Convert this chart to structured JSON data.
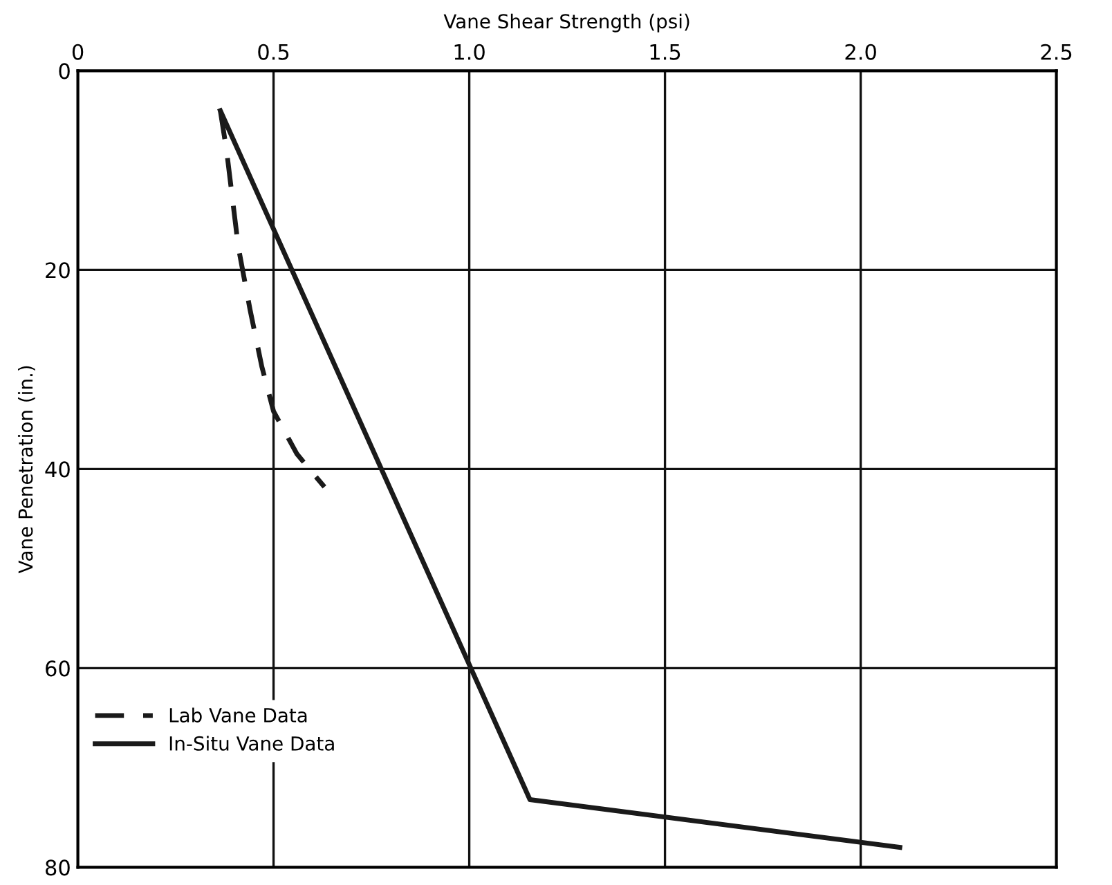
{
  "chart_data": {
    "type": "line",
    "xlabel": "Vane Shear Strength (psi)",
    "ylabel": "Vane Penetration (in.)",
    "xlim": [
      0,
      2.5
    ],
    "xticks": [
      0,
      0.5,
      {
        "value": 1,
        "label": "1.0"
      },
      1.5,
      {
        "value": 2,
        "label": "2.0"
      },
      2.5
    ],
    "ylim": [
      80,
      0
    ],
    "yticks": [
      0,
      20,
      40,
      60,
      80
    ],
    "grid": true,
    "legend": "bottom left",
    "series": [
      {
        "name": "Lab Vane Data",
        "color": "#1a1a1a",
        "line_style": "dashed",
        "x": [
          0.364,
          0.38,
          0.41,
          0.44,
          0.47,
          0.5,
          0.56,
          0.63
        ],
        "values": [
          4,
          8,
          17.7,
          24,
          29.7,
          34.2,
          38.5,
          41.8
        ]
      },
      {
        "name": "In-Situ Vane Data",
        "color": "#1a1a1a",
        "line_style": "solid",
        "x": [
          0.364,
          1.155,
          2.1
        ],
        "values": [
          4,
          73.2,
          78
        ]
      }
    ]
  }
}
